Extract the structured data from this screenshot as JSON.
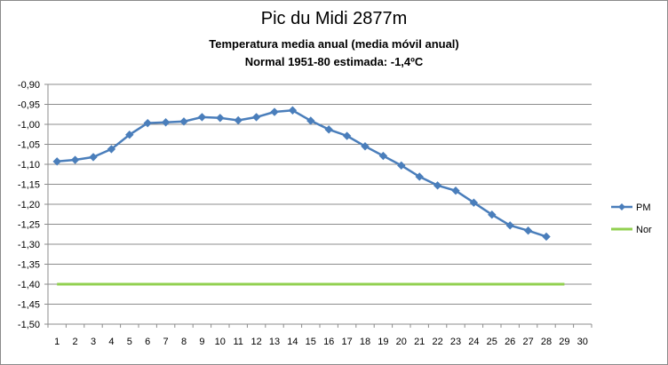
{
  "chart_data": {
    "type": "line",
    "title": "Pic du Midi 2877m",
    "subtitle": "Temperatura media anual (media móvil anual)",
    "subtitle2": "Normal 1951-80 estimada: -1,4ºC",
    "xlabel": "",
    "ylabel": "",
    "x_categories": [
      "1",
      "2",
      "3",
      "4",
      "5",
      "6",
      "7",
      "8",
      "9",
      "10",
      "11",
      "12",
      "13",
      "14",
      "15",
      "16",
      "17",
      "18",
      "19",
      "20",
      "21",
      "22",
      "23",
      "24",
      "25",
      "26",
      "27",
      "28",
      "29",
      "30"
    ],
    "ylim": [
      -1.5,
      -0.9
    ],
    "y_ticks": [
      "-0,90",
      "-0,95",
      "-1,00",
      "-1,05",
      "-1,10",
      "-1,15",
      "-1,20",
      "-1,25",
      "-1,30",
      "-1,35",
      "-1,40",
      "-1,45",
      "-1,50"
    ],
    "grid": true,
    "legend_position": "right",
    "series": [
      {
        "name": "PM",
        "color": "#4a7ebb",
        "marker": "diamond",
        "values": [
          -1.093,
          -1.089,
          -1.082,
          -1.062,
          -1.026,
          -0.997,
          -0.995,
          -0.993,
          -0.982,
          -0.984,
          -0.99,
          -0.982,
          -0.969,
          -0.965,
          -0.991,
          -1.013,
          -1.029,
          -1.055,
          -1.079,
          -1.103,
          -1.131,
          -1.153,
          -1.166,
          -1.196,
          -1.226,
          -1.253,
          -1.266,
          -1.281
        ]
      },
      {
        "name": "Nor",
        "color": "#92d050",
        "marker": "none",
        "values": [
          -1.4,
          -1.4,
          -1.4,
          -1.4,
          -1.4,
          -1.4,
          -1.4,
          -1.4,
          -1.4,
          -1.4,
          -1.4,
          -1.4,
          -1.4,
          -1.4,
          -1.4,
          -1.4,
          -1.4,
          -1.4,
          -1.4,
          -1.4,
          -1.4,
          -1.4,
          -1.4,
          -1.4,
          -1.4,
          -1.4,
          -1.4,
          -1.4,
          -1.4
        ]
      }
    ]
  }
}
